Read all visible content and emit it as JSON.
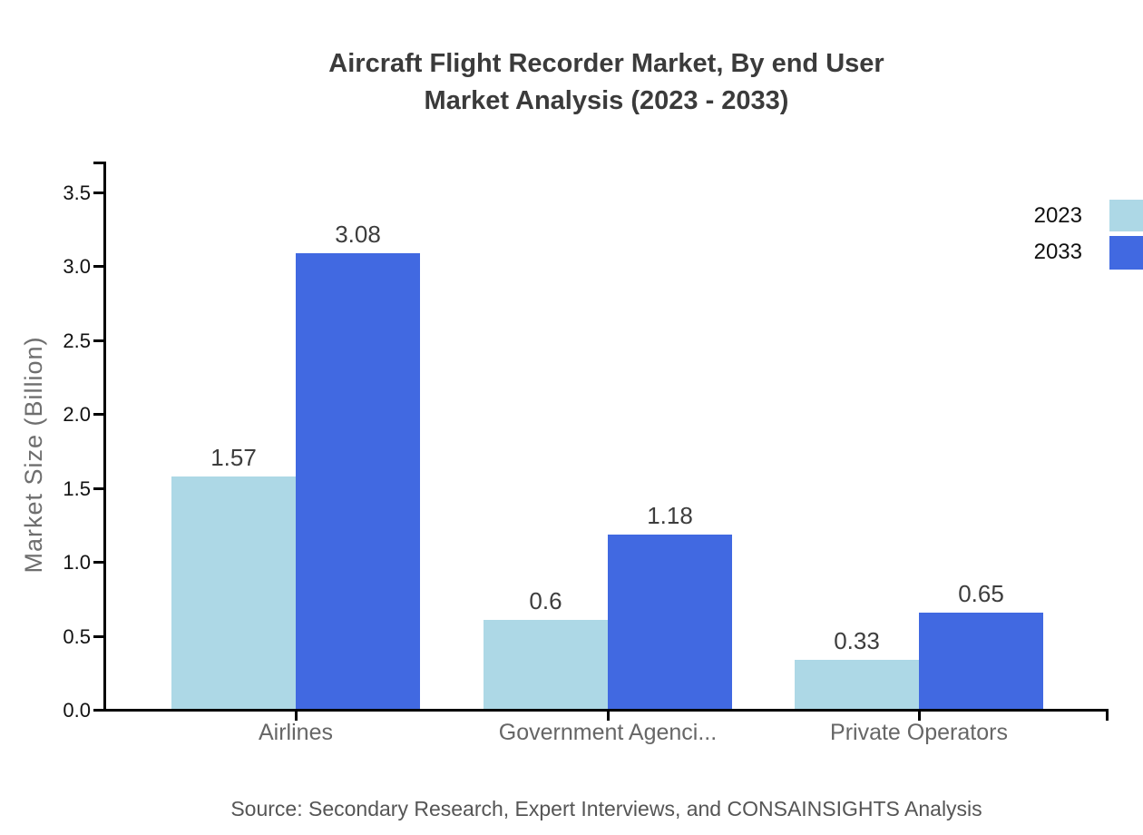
{
  "title": {
    "line1": "Aircraft Flight Recorder Market, By end User",
    "line2": "Market Analysis (2023 - 2033)"
  },
  "legend": {
    "items": [
      {
        "label": "2023",
        "color": "#ADD8E6"
      },
      {
        "label": "2033",
        "color": "#4169E1"
      }
    ]
  },
  "source": "Source: Secondary Research, Expert Interviews, and CONSAINSIGHTS Analysis",
  "chart_data": {
    "type": "bar",
    "title": "Aircraft Flight Recorder Market, By end User Market Analysis (2023 - 2033)",
    "categories": [
      "Airlines",
      "Government Agenci...",
      "Private Operators"
    ],
    "series": [
      {
        "name": "2023",
        "color": "#ADD8E6",
        "values": [
          1.57,
          0.6,
          0.33
        ]
      },
      {
        "name": "2033",
        "color": "#4169E1",
        "values": [
          3.08,
          1.18,
          0.65
        ]
      }
    ],
    "xlabel": "",
    "ylabel": "Market Size (Billion)",
    "yticks": [
      0.0,
      0.5,
      1.0,
      1.5,
      2.0,
      2.5,
      3.0,
      3.5
    ],
    "ylim": [
      0,
      3.7
    ],
    "grid": false,
    "legend_position": "top-right",
    "value_labels": true,
    "colors": {
      "axis": "#000000",
      "title_text": "#3b3b3b",
      "tick_text": "#111111",
      "category_text": "#666666",
      "ylabel_text": "#6e6e6e",
      "value_text": "#3d3d3d",
      "source_text": "#555555"
    }
  }
}
